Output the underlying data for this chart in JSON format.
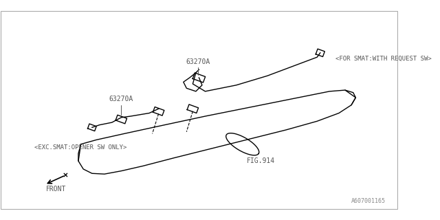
{
  "background_color": "#ffffff",
  "border_color": "#cccccc",
  "line_color": "#000000",
  "label_color": "#555555",
  "title_text": "",
  "watermark": "A607001165",
  "part_label_1": "63270A",
  "part_label_2": "63270A",
  "fig_label": "FIG.914",
  "note_top": "<FOR SMAT:WITH REQUEST SW>",
  "note_bottom": "<EXC.SMAT:OPENER SW ONLY>",
  "front_label": "FRONT"
}
